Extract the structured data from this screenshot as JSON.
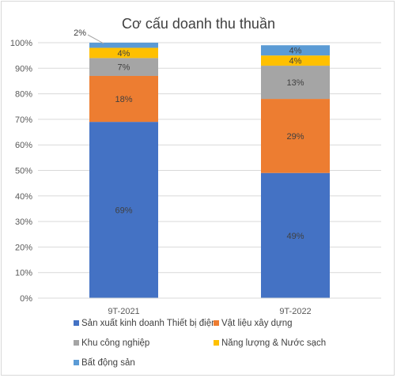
{
  "chart_data": {
    "type": "bar",
    "stacked": true,
    "title": "Cơ cấu doanh thu thuần",
    "categories": [
      "9T-2021",
      "9T-2022"
    ],
    "ylim": [
      0,
      100
    ],
    "yticks": [
      "0%",
      "10%",
      "20%",
      "30%",
      "40%",
      "50%",
      "60%",
      "70%",
      "80%",
      "90%",
      "100%"
    ],
    "grid": true,
    "legend_position": "bottom",
    "series": [
      {
        "name": "Sản xuất kinh doanh Thiết bị điện",
        "color": "#4472C4",
        "values": [
          69,
          49
        ],
        "labels": [
          "69%",
          "49%"
        ]
      },
      {
        "name": "Vật liệu xây dựng",
        "color": "#ED7D31",
        "values": [
          18,
          29
        ],
        "labels": [
          "18%",
          "29%"
        ]
      },
      {
        "name": "Khu công nghiệp",
        "color": "#A5A5A5",
        "values": [
          7,
          13
        ],
        "labels": [
          "7%",
          "13%"
        ]
      },
      {
        "name": "Năng lượng & Nước sạch",
        "color": "#FFC000",
        "values": [
          4,
          4
        ],
        "labels": [
          "4%",
          "4%"
        ]
      },
      {
        "name": "Bất động sản",
        "color": "#5B9BD5",
        "values": [
          2,
          4
        ],
        "labels": [
          "2%",
          "4%"
        ]
      }
    ]
  }
}
